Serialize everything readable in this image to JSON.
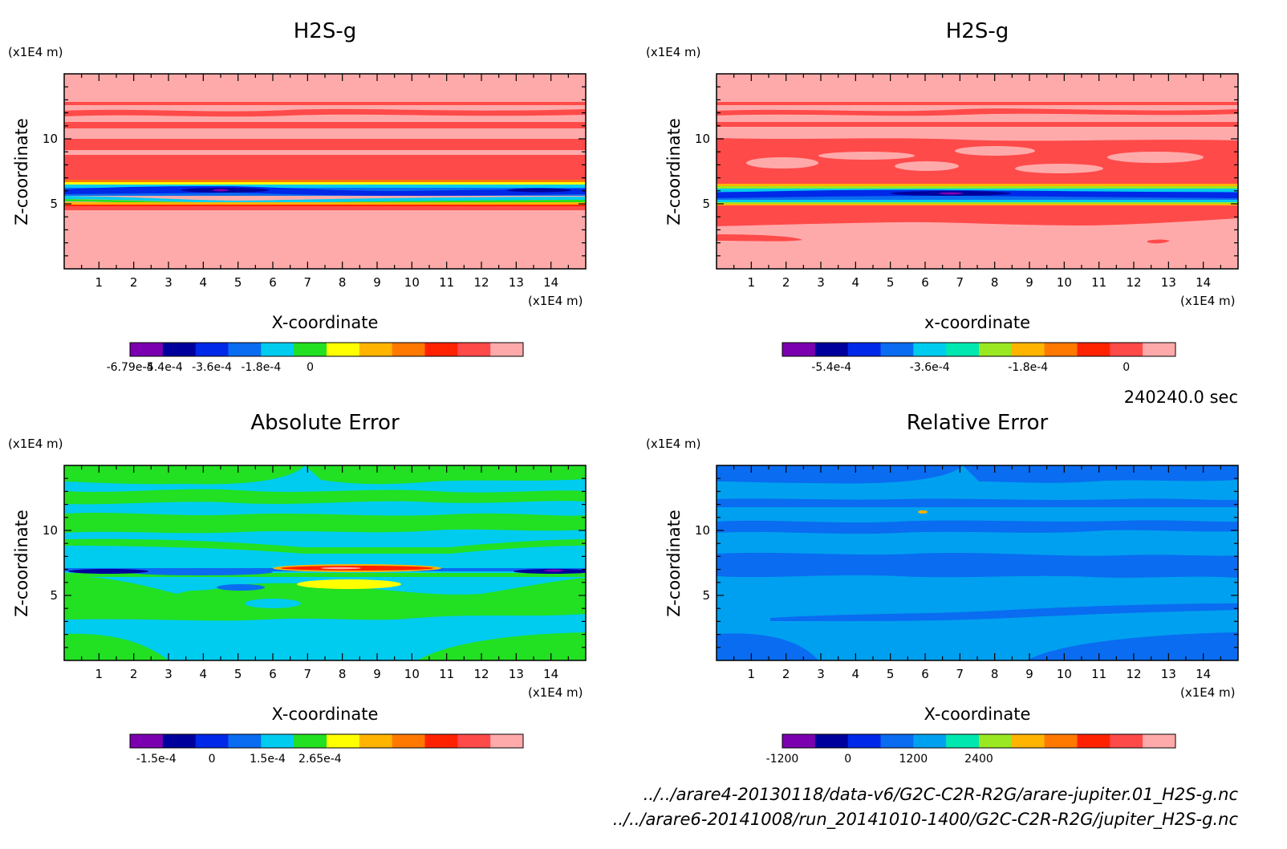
{
  "figure": {
    "timestamp": "240240.0 sec",
    "file_a": "../../arare4-20130118/data-v6/G2C-C2R-R2G/arare-jupiter.01_H2S-g.nc",
    "file_b": "../../arare6-20141008/run_20141010-1400/G2C-C2R-R2G/jupiter_H2S-g.nc"
  },
  "chart_data": [
    {
      "type": "heatmap",
      "title": "H2S-g",
      "xlabel": "X-coordinate",
      "ylabel": "Z-coordinate",
      "x_unit": "(x1E4 m)",
      "y_unit": "(x1E4 m)",
      "xlim": [
        0,
        15
      ],
      "ylim": [
        0,
        15
      ],
      "x_ticks": [
        "1",
        "2",
        "3",
        "4",
        "5",
        "6",
        "7",
        "8",
        "9",
        "10",
        "11",
        "12",
        "13",
        "14"
      ],
      "y_ticks": [
        "5",
        "10"
      ],
      "colorbar": {
        "colors": [
          "#7a00b0",
          "#00009c",
          "#0028e8",
          "#0a6cf0",
          "#00ccf0",
          "#22e022",
          "#ffff00",
          "#ffb400",
          "#ff7800",
          "#ff2200",
          "#ff4a4a",
          "#ffaaaa"
        ],
        "labels": [
          "-6.79e-4",
          "-5.4e-4",
          "-3.6e-4",
          "-1.8e-4",
          "0"
        ],
        "label_positions": [
          0,
          1,
          2.5,
          4,
          5.5
        ]
      }
    },
    {
      "type": "heatmap",
      "title": "H2S-g",
      "xlabel": "x-coordinate",
      "ylabel": "Z-coordinate",
      "x_unit": "(x1E4 m)",
      "y_unit": "(x1E4 m)",
      "xlim": [
        0,
        15
      ],
      "ylim": [
        0,
        15
      ],
      "x_ticks": [
        "1",
        "2",
        "3",
        "4",
        "5",
        "6",
        "7",
        "8",
        "9",
        "10",
        "11",
        "12",
        "13",
        "14"
      ],
      "y_ticks": [
        "5",
        "10"
      ],
      "colorbar": {
        "colors": [
          "#7a00b0",
          "#00009c",
          "#0028e8",
          "#0a6cf0",
          "#00ccf0",
          "#00e8b0",
          "#9ae822",
          "#ffb400",
          "#ff7800",
          "#ff2200",
          "#ff4a4a",
          "#ffaaaa"
        ],
        "labels": [
          "-5.4e-4",
          "-3.6e-4",
          "-1.8e-4",
          "0"
        ],
        "label_positions": [
          1.5,
          4.5,
          7.5,
          10.5
        ]
      }
    },
    {
      "type": "heatmap",
      "title": "Absolute Error",
      "xlabel": "X-coordinate",
      "ylabel": "Z-coordinate",
      "x_unit": "(x1E4 m)",
      "y_unit": "(x1E4 m)",
      "xlim": [
        0,
        15
      ],
      "ylim": [
        0,
        15
      ],
      "x_ticks": [
        "1",
        "2",
        "3",
        "4",
        "5",
        "6",
        "7",
        "8",
        "9",
        "10",
        "11",
        "12",
        "13",
        "14"
      ],
      "y_ticks": [
        "5",
        "10"
      ],
      "colorbar": {
        "colors": [
          "#7a00b0",
          "#00009c",
          "#0028e8",
          "#0a6cf0",
          "#00ccf0",
          "#22e022",
          "#ffff00",
          "#ffb400",
          "#ff7800",
          "#ff2200",
          "#ff4a4a",
          "#ffaaaa"
        ],
        "labels": [
          "-1.5e-4",
          "0",
          "1.5e-4",
          "2.65e-4"
        ],
        "label_positions": [
          0.8,
          2.5,
          4.2,
          5.8
        ]
      }
    },
    {
      "type": "heatmap",
      "title": "Relative Error",
      "xlabel": "X-coordinate",
      "ylabel": "Z-coordinate",
      "x_unit": "(x1E4 m)",
      "y_unit": "(x1E4 m)",
      "xlim": [
        0,
        15
      ],
      "ylim": [
        0,
        15
      ],
      "x_ticks": [
        "1",
        "2",
        "3",
        "4",
        "5",
        "6",
        "7",
        "8",
        "9",
        "10",
        "11",
        "12",
        "13",
        "14"
      ],
      "y_ticks": [
        "5",
        "10"
      ],
      "colorbar": {
        "colors": [
          "#7a00b0",
          "#00009c",
          "#0028e8",
          "#0a6cf0",
          "#00a0f0",
          "#00e8b0",
          "#9ae822",
          "#ffb400",
          "#ff7800",
          "#ff2200",
          "#ff4a4a",
          "#ffaaaa"
        ],
        "labels": [
          "-1200",
          "0",
          "1200",
          "2400"
        ],
        "label_positions": [
          0,
          2,
          4,
          6
        ]
      }
    }
  ]
}
